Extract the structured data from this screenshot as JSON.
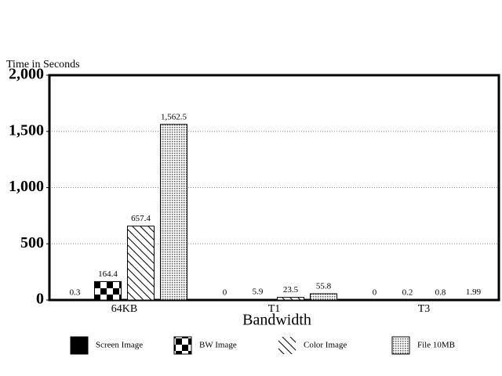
{
  "chart_data": {
    "type": "bar",
    "y_axis_label": "Time in Seconds",
    "x_axis_label": "Bandwidth",
    "categories": [
      "64KB",
      "T1",
      "T3"
    ],
    "series": [
      {
        "name": "Screen Image",
        "values": [
          0.3,
          0,
          0
        ]
      },
      {
        "name": "BW Image",
        "values": [
          164.4,
          5.9,
          0.2
        ]
      },
      {
        "name": "Color Image",
        "values": [
          657.4,
          23.5,
          0.8
        ]
      },
      {
        "name": "File 10MB",
        "values": [
          1562.5,
          55.8,
          1.99
        ],
        "value_labels": [
          "1,562.5",
          "55.8",
          "1.99"
        ]
      }
    ],
    "ylim": [
      0,
      2000
    ],
    "yticks": [
      0,
      500,
      {
        "value": 1000,
        "label": "1,000"
      },
      {
        "value": 1500,
        "label": "1,500"
      },
      {
        "value": 2000,
        "label": "2,000"
      }
    ],
    "grid": true
  }
}
